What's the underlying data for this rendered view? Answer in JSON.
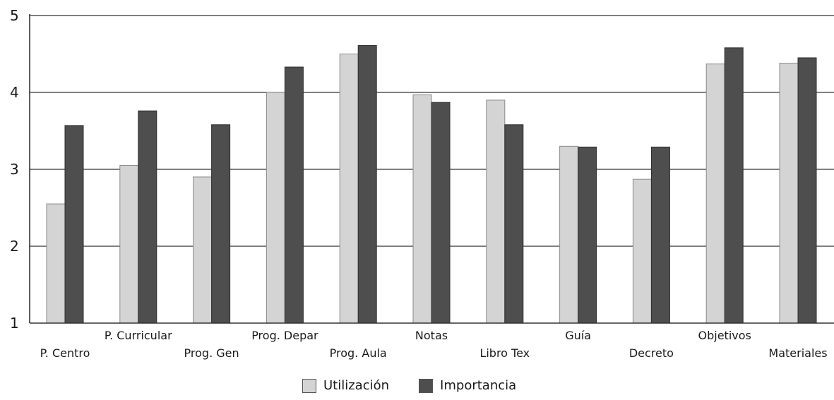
{
  "colors": {
    "utilizacion": "#d4d4d4",
    "importancia": "#4e4e4e",
    "axis": "#333333",
    "grid": "#333333",
    "background": "#ffffff"
  },
  "chart_data": {
    "type": "bar",
    "title": "",
    "xlabel": "",
    "ylabel": "",
    "ylim": [
      1,
      5
    ],
    "yticks": [
      1,
      2,
      3,
      4,
      5
    ],
    "grid": true,
    "legend_placement": "bottom",
    "categories": [
      "P. Centro",
      "P. Curricular",
      "Prog. Gen",
      "Prog. Depar",
      "Prog. Aula",
      "Notas",
      "Libro Tex",
      "Guía",
      "Decreto",
      "Objetivos",
      "Materiales"
    ],
    "series": [
      {
        "name": "Utilización",
        "values": [
          2.55,
          3.05,
          2.9,
          4.0,
          4.5,
          3.97,
          3.9,
          3.3,
          2.87,
          4.37,
          4.38
        ]
      },
      {
        "name": "Importancia",
        "values": [
          3.57,
          3.76,
          3.58,
          4.33,
          4.61,
          3.87,
          3.58,
          3.29,
          3.29,
          4.58,
          4.45
        ]
      }
    ]
  }
}
